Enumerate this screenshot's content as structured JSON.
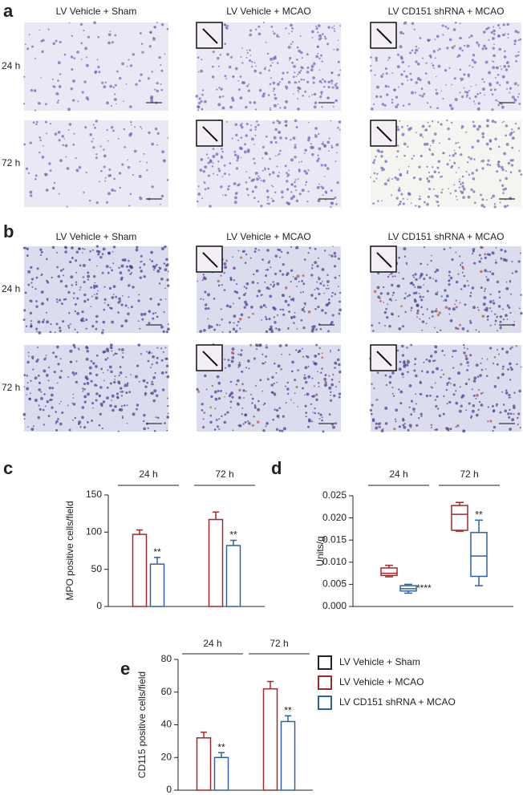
{
  "panels": [
    {
      "label": "a",
      "columns": [
        "LV Vehicle + Sham",
        "LV Vehicle + MCAO",
        "LV CD151 shRNA + MCAO"
      ],
      "rows": [
        "24 h",
        "72 h"
      ]
    },
    {
      "label": "b",
      "columns": [
        "LV Vehicle + Sham",
        "LV Vehicle + MCAO",
        "LV CD151 shRNA + MCAO"
      ],
      "rows": [
        "24 h",
        "72 h"
      ]
    }
  ],
  "legend": [
    {
      "name": "LV Vehicle + Sham",
      "color": "#222222"
    },
    {
      "name": "LV Vehicle + MCAO",
      "color": "#a3282b"
    },
    {
      "name": "LV CD151 shRNA + MCAO",
      "color": "#2f62a3"
    }
  ],
  "chart_data": [
    {
      "type": "bar",
      "panel": "c",
      "y_label": "MPO positive cells/field",
      "categories": [
        "24 h",
        "72 h"
      ],
      "ylim": [
        0,
        150
      ],
      "yticks": [
        0,
        50,
        100,
        150
      ],
      "series": [
        {
          "color": "#a3282b",
          "values": [
            97,
            117
          ],
          "errors": [
            6,
            10
          ]
        },
        {
          "color": "#2f62a3",
          "values": [
            57,
            82
          ],
          "errors": [
            9,
            7
          ],
          "significance": [
            "**",
            "**"
          ]
        }
      ]
    },
    {
      "type": "box",
      "panel": "d",
      "y_label": "Units/g",
      "categories": [
        "24 h",
        "72 h"
      ],
      "ylim": [
        0,
        0.025
      ],
      "yticks": [
        {
          "value": 0,
          "label": "0.000"
        },
        {
          "value": 0.005,
          "label": "0.005"
        },
        {
          "value": 0.01,
          "label": "0.010"
        },
        {
          "value": 0.015,
          "label": "0.015"
        },
        {
          "value": 0.02,
          "label": "0.020"
        },
        {
          "value": 0.025,
          "label": "0.025"
        }
      ],
      "series": [
        {
          "color": "#a3282b",
          "boxes": [
            {
              "min": 0.0067,
              "q1": 0.007,
              "median": 0.0075,
              "q3": 0.0087,
              "max": 0.0093
            },
            {
              "min": 0.017,
              "q1": 0.0172,
              "median": 0.0208,
              "q3": 0.0228,
              "max": 0.0235
            }
          ]
        },
        {
          "color": "#2f62a3",
          "boxes": [
            {
              "min": 0.003,
              "q1": 0.0035,
              "median": 0.004,
              "q3": 0.0047,
              "max": 0.005
            },
            {
              "min": 0.0047,
              "q1": 0.0068,
              "median": 0.0114,
              "q3": 0.0167,
              "max": 0.0195
            }
          ],
          "significance": [
            "****",
            "**"
          ]
        }
      ]
    },
    {
      "type": "bar",
      "panel": "e",
      "y_label": "CD115 positive cells/field",
      "categories": [
        "24 h",
        "72 h"
      ],
      "ylim": [
        0,
        80
      ],
      "yticks": [
        0,
        20,
        40,
        60,
        80
      ],
      "series": [
        {
          "color": "#a3282b",
          "values": [
            32,
            62
          ],
          "errors": [
            3.5,
            4.5
          ]
        },
        {
          "color": "#2f62a3",
          "values": [
            20,
            42
          ],
          "errors": [
            3,
            3.5
          ],
          "significance": [
            "**",
            "**"
          ]
        }
      ]
    }
  ]
}
